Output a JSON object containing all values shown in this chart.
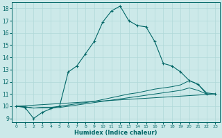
{
  "xlabel": "Humidex (Indice chaleur)",
  "background_color": "#cce9e9",
  "grid_color": "#b0d8d8",
  "line_color": "#006666",
  "xlim": [
    -0.5,
    23.5
  ],
  "ylim": [
    8.7,
    18.5
  ],
  "yticks": [
    9,
    10,
    11,
    12,
    13,
    14,
    15,
    16,
    17,
    18
  ],
  "xticks": [
    0,
    1,
    2,
    3,
    4,
    5,
    6,
    7,
    8,
    9,
    10,
    11,
    12,
    13,
    14,
    15,
    16,
    17,
    18,
    19,
    20,
    21,
    22,
    23
  ],
  "line1_x": [
    0,
    1,
    2,
    3,
    4,
    5,
    6,
    7,
    8,
    9,
    10,
    11,
    12,
    13,
    14,
    15,
    16,
    17,
    18,
    19,
    20,
    21,
    22,
    23
  ],
  "line1_y": [
    10.0,
    9.9,
    9.0,
    9.5,
    9.8,
    10.0,
    12.8,
    13.3,
    14.3,
    15.3,
    16.9,
    17.8,
    18.2,
    17.0,
    16.6,
    16.5,
    15.3,
    13.5,
    13.3,
    12.8,
    12.1,
    11.8,
    11.0,
    11.0
  ],
  "line2_x": [
    0,
    1,
    2,
    3,
    4,
    5,
    6,
    7,
    8,
    9,
    10,
    11,
    12,
    13,
    14,
    15,
    16,
    17,
    18,
    19,
    20,
    21,
    22,
    23
  ],
  "line2_y": [
    10.0,
    9.95,
    9.85,
    9.9,
    9.9,
    10.0,
    10.1,
    10.2,
    10.3,
    10.4,
    10.55,
    10.7,
    10.85,
    11.0,
    11.1,
    11.25,
    11.4,
    11.5,
    11.6,
    11.75,
    12.1,
    11.8,
    11.1,
    11.0
  ],
  "line3_x": [
    0,
    1,
    2,
    3,
    4,
    5,
    6,
    7,
    8,
    9,
    10,
    11,
    12,
    13,
    14,
    15,
    16,
    17,
    18,
    19,
    20,
    21,
    22,
    23
  ],
  "line3_y": [
    10.0,
    9.95,
    9.85,
    9.88,
    9.88,
    9.9,
    10.0,
    10.1,
    10.2,
    10.3,
    10.4,
    10.5,
    10.6,
    10.7,
    10.8,
    10.9,
    11.0,
    11.1,
    11.2,
    11.3,
    11.5,
    11.3,
    11.0,
    11.0
  ],
  "line4_x": [
    0,
    23
  ],
  "line4_y": [
    10.0,
    11.0
  ]
}
